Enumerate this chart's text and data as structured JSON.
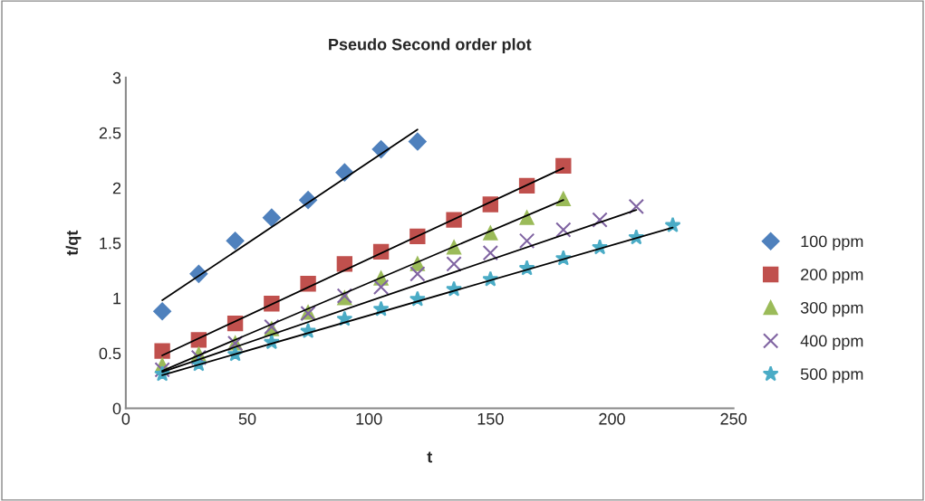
{
  "chart_data": {
    "type": "scatter",
    "title": "Pseudo Second order plot",
    "xlabel": "t",
    "ylabel": "t/qt",
    "xlim": [
      0,
      250
    ],
    "xticks": [
      0,
      50,
      100,
      150,
      200,
      250
    ],
    "ylim": [
      0,
      3
    ],
    "yticks": [
      0,
      0.5,
      1,
      1.5,
      2,
      2.5,
      3
    ],
    "grid": false,
    "legend": "right",
    "series": [
      {
        "name": "100 ppm",
        "color": "#4f81bd",
        "marker": "diamond",
        "x": [
          15,
          30,
          45,
          60,
          75,
          90,
          105,
          120
        ],
        "values": [
          0.88,
          1.22,
          1.52,
          1.73,
          1.89,
          2.14,
          2.35,
          2.42
        ]
      },
      {
        "name": "200 ppm",
        "color": "#c0504d",
        "marker": "square",
        "x": [
          15,
          30,
          45,
          60,
          75,
          90,
          105,
          120,
          135,
          150,
          165,
          180
        ],
        "values": [
          0.52,
          0.62,
          0.77,
          0.95,
          1.13,
          1.31,
          1.42,
          1.56,
          1.71,
          1.85,
          2.02,
          2.2
        ]
      },
      {
        "name": "300 ppm",
        "color": "#9bbb59",
        "marker": "triangle",
        "x": [
          15,
          30,
          45,
          60,
          75,
          90,
          105,
          120,
          135,
          150,
          165,
          180
        ],
        "values": [
          0.39,
          0.49,
          0.59,
          0.72,
          0.87,
          1.0,
          1.18,
          1.31,
          1.46,
          1.59,
          1.73,
          1.9
        ]
      },
      {
        "name": "400 ppm",
        "color": "#8064a2",
        "marker": "cross",
        "x": [
          15,
          30,
          45,
          60,
          75,
          90,
          105,
          120,
          135,
          150,
          165,
          180,
          195,
          210
        ],
        "values": [
          0.35,
          0.46,
          0.59,
          0.74,
          0.86,
          1.02,
          1.1,
          1.22,
          1.31,
          1.41,
          1.52,
          1.62,
          1.71,
          1.83
        ]
      },
      {
        "name": "500 ppm",
        "color": "#4bacc6",
        "marker": "star",
        "x": [
          15,
          30,
          45,
          60,
          75,
          90,
          105,
          120,
          135,
          150,
          165,
          180,
          195,
          210,
          225
        ],
        "values": [
          0.31,
          0.4,
          0.49,
          0.6,
          0.7,
          0.81,
          0.9,
          0.99,
          1.08,
          1.17,
          1.27,
          1.36,
          1.46,
          1.55,
          1.66
        ]
      },
      {
        "type": "line",
        "color": "#000000",
        "marker": "none",
        "x": [
          15,
          120
        ],
        "values": [
          0.98,
          2.53
        ]
      },
      {
        "type": "line",
        "color": "#000000",
        "marker": "none",
        "x": [
          15,
          180
        ],
        "values": [
          0.48,
          2.18
        ]
      },
      {
        "type": "line",
        "color": "#000000",
        "marker": "none",
        "x": [
          15,
          180
        ],
        "values": [
          0.34,
          1.89
        ]
      },
      {
        "type": "line",
        "color": "#000000",
        "marker": "none",
        "x": [
          15,
          210
        ],
        "values": [
          0.33,
          1.8
        ]
      },
      {
        "type": "line",
        "color": "#000000",
        "marker": "none",
        "x": [
          15,
          225
        ],
        "values": [
          0.3,
          1.64
        ]
      }
    ]
  }
}
